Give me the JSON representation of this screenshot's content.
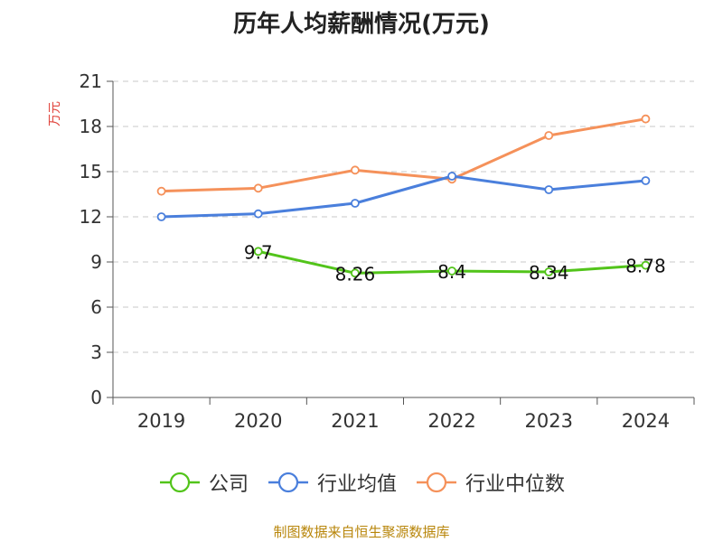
{
  "chart_data": {
    "type": "line",
    "title": "历年人均薪酬情况(万元)",
    "ylabel": "万元",
    "xlabel": "",
    "categories": [
      "2019",
      "2020",
      "2021",
      "2022",
      "2023",
      "2024"
    ],
    "ylim": [
      0,
      21
    ],
    "yticks": [
      0,
      3,
      6,
      9,
      12,
      15,
      18,
      21
    ],
    "grid": true,
    "legend_position": "bottom",
    "series": [
      {
        "name": "公司",
        "color": "#52c41a",
        "values": [
          null,
          9.7,
          8.26,
          8.4,
          8.34,
          8.78
        ],
        "labels": [
          "",
          "9.7",
          "8.26",
          "8.4",
          "8.34",
          "8.78"
        ]
      },
      {
        "name": "行业均值",
        "color": "#4a7fdc",
        "values": [
          12.0,
          12.2,
          12.9,
          14.7,
          13.8,
          14.4
        ]
      },
      {
        "name": "行业中位数",
        "color": "#f5915a",
        "values": [
          13.7,
          13.9,
          15.1,
          14.5,
          17.4,
          18.5
        ]
      }
    ]
  },
  "source": "制图数据来自恒生聚源数据库"
}
